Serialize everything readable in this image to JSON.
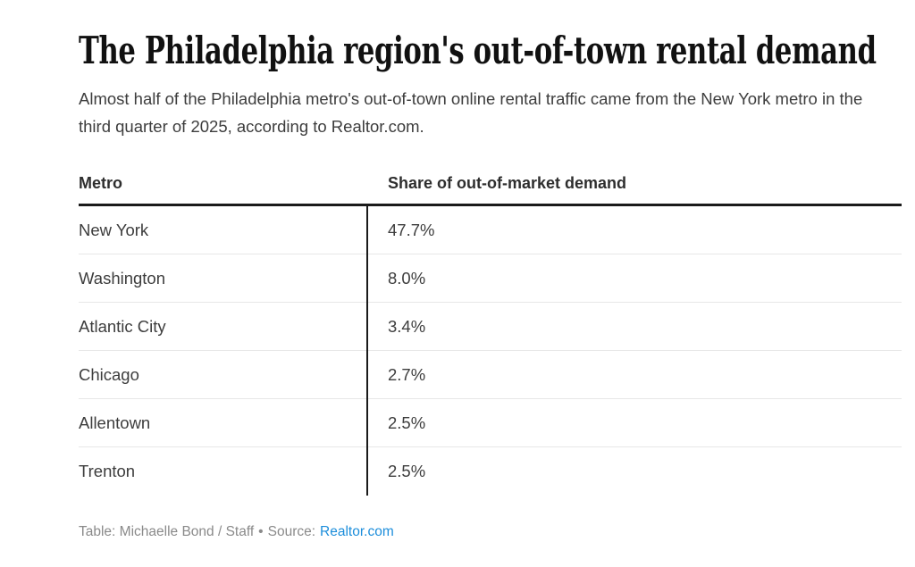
{
  "header": {
    "title": "The Philadelphia region's out-of-town rental demand",
    "subtitle": "Almost half of the Philadelphia metro's out-of-town online rental traffic came from the New York metro in the third quarter of 2025, according to Realtor.com."
  },
  "table": {
    "columns": [
      {
        "label": "Metro"
      },
      {
        "label": "Share of out-of-market demand"
      }
    ],
    "rows": [
      {
        "metro": "New York",
        "share": "47.7%"
      },
      {
        "metro": "Washington",
        "share": "8.0%"
      },
      {
        "metro": "Atlantic City",
        "share": "3.4%"
      },
      {
        "metro": "Chicago",
        "share": "2.7%"
      },
      {
        "metro": "Allentown",
        "share": "2.5%"
      },
      {
        "metro": "Trenton",
        "share": "2.5%"
      }
    ]
  },
  "footer": {
    "credit": "Table: Michaelle Bond / Staff",
    "separator": "•",
    "source_label": "Source:",
    "source_name": "Realtor.com"
  },
  "colors": {
    "title": "#111111",
    "body_text": "#3d3d3d",
    "header_text": "#2e2e2e",
    "thick_rule": "#1a1a1a",
    "row_divider": "#e7e7e7",
    "footer_text": "#8a8a8a",
    "link_blue": "#1d8edb"
  },
  "chart_data": {
    "type": "table",
    "title": "The Philadelphia region's out-of-town rental demand",
    "subtitle": "Almost half of the Philadelphia metro's out-of-town online rental traffic came from the New York metro in the third quarter of 2025, according to Realtor.com.",
    "columns": [
      "Metro",
      "Share of out-of-market demand"
    ],
    "categories": [
      "New York",
      "Washington",
      "Atlantic City",
      "Chicago",
      "Allentown",
      "Trenton"
    ],
    "values": [
      47.7,
      8.0,
      3.4,
      2.7,
      2.5,
      2.5
    ],
    "unit": "%",
    "credit": "Table: Michaelle Bond / Staff",
    "source": "Realtor.com"
  }
}
